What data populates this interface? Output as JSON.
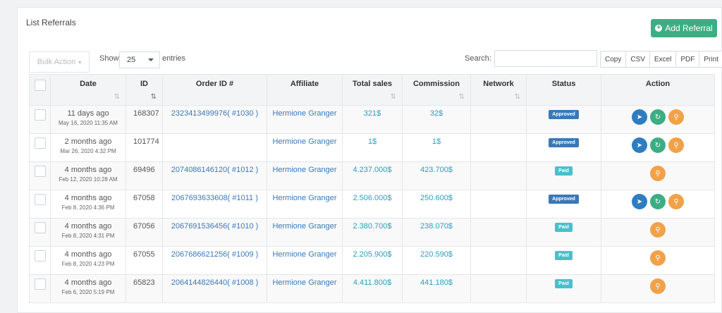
{
  "header": {
    "title": "List Referrals",
    "add_button": "Add Referral"
  },
  "toolbar": {
    "bulk_action": "Bulk Action",
    "show_label": "Show",
    "page_size": "25",
    "entries_label": "entries",
    "search_label": "Search:",
    "search_value": "",
    "export_buttons": [
      "Copy",
      "CSV",
      "Excel",
      "PDF",
      "Print"
    ]
  },
  "table": {
    "columns": [
      "Date",
      "ID",
      "Order ID #",
      "Affiliate",
      "Total sales",
      "Commission",
      "Network",
      "Status",
      "Action"
    ],
    "rows": [
      {
        "date": "11 days ago",
        "date_full": "May 16, 2020 11:35 AM",
        "id": "168307",
        "order": "2323413499976( #1030 )",
        "affiliate": "Hermione Granger",
        "total": "321$",
        "commission": "32$",
        "network": "",
        "status": "Approved",
        "actions": [
          "send",
          "reload",
          "view"
        ]
      },
      {
        "date": "2 months ago",
        "date_full": "Mar 26, 2020 4:32 PM",
        "id": "101774",
        "order": "",
        "affiliate": "Hermione Granger",
        "total": "1$",
        "commission": "1$",
        "network": "",
        "status": "Approved",
        "actions": [
          "send",
          "reload",
          "view"
        ]
      },
      {
        "date": "4 months ago",
        "date_full": "Feb 12, 2020 10:28 AM",
        "id": "69496",
        "order": "2074086146120( #1012 )",
        "affiliate": "Hermione Granger",
        "total": "4.237.000$",
        "commission": "423.700$",
        "network": "",
        "status": "Paid",
        "actions": [
          "view"
        ]
      },
      {
        "date": "4 months ago",
        "date_full": "Feb 8, 2020 4:36 PM",
        "id": "67058",
        "order": "2067693633608( #1011 )",
        "affiliate": "Hermione Granger",
        "total": "2.506.000$",
        "commission": "250.600$",
        "network": "",
        "status": "Approved",
        "actions": [
          "send",
          "reload",
          "view"
        ]
      },
      {
        "date": "4 months ago",
        "date_full": "Feb 8, 2020 4:31 PM",
        "id": "67056",
        "order": "2067691536456( #1010 )",
        "affiliate": "Hermione Granger",
        "total": "2.380.700$",
        "commission": "238.070$",
        "network": "",
        "status": "Paid",
        "actions": [
          "view"
        ]
      },
      {
        "date": "4 months ago",
        "date_full": "Feb 8, 2020 4:23 PM",
        "id": "67055",
        "order": "2067686621256( #1009 )",
        "affiliate": "Hermione Granger",
        "total": "2.205.900$",
        "commission": "220.590$",
        "network": "",
        "status": "Paid",
        "actions": [
          "view"
        ]
      },
      {
        "date": "4 months ago",
        "date_full": "Feb 6, 2020 5:19 PM",
        "id": "65823",
        "order": "2064144826440( #1008 )",
        "affiliate": "Hermione Granger",
        "total": "4.411.800$",
        "commission": "441.180$",
        "network": "",
        "status": "Paid",
        "actions": [
          "view"
        ]
      }
    ]
  },
  "colors": {
    "accent_green": "#3dae83",
    "link_blue": "#3c78b5",
    "number_teal": "#2a9fbd",
    "approved_badge": "#3b78b5",
    "paid_badge": "#47c0cc",
    "action_send": "#2f7dc1",
    "action_reload": "#3dae83",
    "action_view": "#f0a24a"
  },
  "icons": {
    "add": "plus-circle-icon",
    "send": "paper-plane-icon",
    "reload": "refresh-icon",
    "view": "search-icon",
    "sort": "sort-icon"
  }
}
